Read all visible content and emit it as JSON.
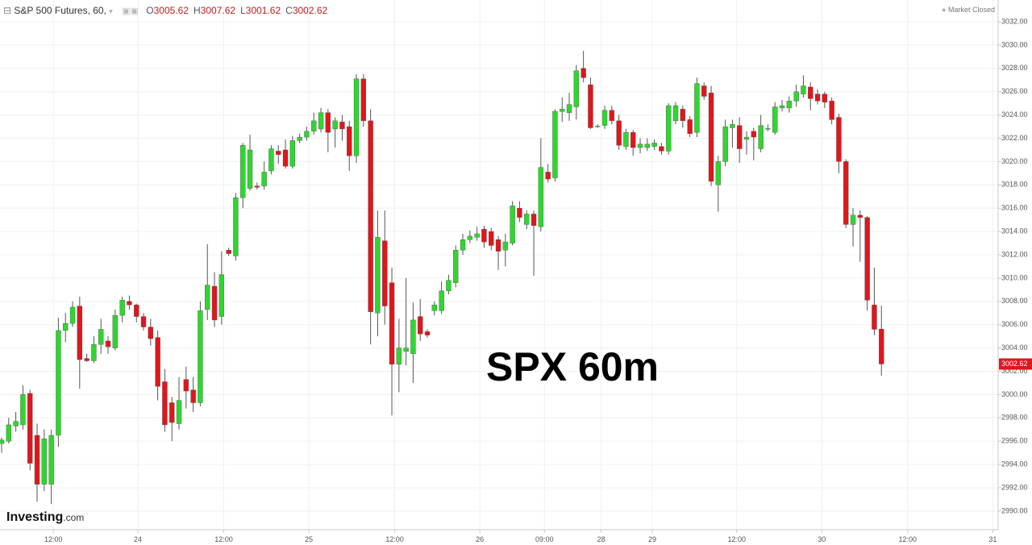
{
  "chart_data": {
    "type": "candlestick",
    "title": "S&P 500 Futures, 60,",
    "ohlc_keys": [
      "O",
      "H",
      "L",
      "C"
    ],
    "status": "Market Closed",
    "annotation": "SPX 60m",
    "logo": [
      "Investing",
      ".com"
    ],
    "up_color": "#2fd62f",
    "down_color": "#e0161c",
    "wick_color": "#555555",
    "grid": true,
    "xlim": [
      -0.23,
      140.45
    ],
    "xticks": [
      {
        "value": 7.3,
        "label": "12:00"
      },
      {
        "value": 19.2,
        "label": "24"
      },
      {
        "value": 31.3,
        "label": "12:00"
      },
      {
        "value": 43.3,
        "label": "25"
      },
      {
        "value": 55.4,
        "label": "12:00"
      },
      {
        "value": 67.4,
        "label": "26"
      },
      {
        "value": 76.5,
        "label": "09:00"
      },
      {
        "value": 84.5,
        "label": "28"
      },
      {
        "value": 91.7,
        "label": "29"
      },
      {
        "value": 103.6,
        "label": "12:00"
      },
      {
        "value": 115.6,
        "label": "30"
      },
      {
        "value": 127.7,
        "label": "12:00"
      },
      {
        "value": 139.7,
        "label": "31"
      }
    ],
    "ylim": [
      2988.4,
      3033.87
    ],
    "yticks": [
      {
        "value": 2990,
        "label": "2990.00"
      },
      {
        "value": 2992,
        "label": "2992.00"
      },
      {
        "value": 2994,
        "label": "2994.00"
      },
      {
        "value": 2996,
        "label": "2996.00"
      },
      {
        "value": 2998,
        "label": "2998.00"
      },
      {
        "value": 3000,
        "label": "3000.00"
      },
      {
        "value": 3002,
        "label": "3002.00"
      },
      {
        "value": 3004,
        "label": "3004.00"
      },
      {
        "value": 3006,
        "label": "3006.00"
      },
      {
        "value": 3008,
        "label": "3008.00"
      },
      {
        "value": 3010,
        "label": "3010.00"
      },
      {
        "value": 3012,
        "label": "3012.00"
      },
      {
        "value": 3014,
        "label": "3014.00"
      },
      {
        "value": 3016,
        "label": "3016.00"
      },
      {
        "value": 3018,
        "label": "3018.00"
      },
      {
        "value": 3020,
        "label": "3020.00"
      },
      {
        "value": 3022,
        "label": "3022.00"
      },
      {
        "value": 3024,
        "label": "3024.00"
      },
      {
        "value": 3026,
        "label": "3026.00"
      },
      {
        "value": 3028,
        "label": "3028.00"
      },
      {
        "value": 3030,
        "label": "3030.00"
      },
      {
        "value": 3032,
        "label": "3032.00"
      }
    ],
    "open": [
      2995.8,
      2996.0,
      2997.3,
      2997.4,
      3000.1,
      2996.5,
      2992.3,
      2992.3,
      2996.5,
      3005.5,
      3006.1,
      3007.6,
      3003.1,
      3002.9,
      3004.3,
      3004.6,
      3004.0,
      3006.8,
      3008.0,
      3007.7,
      3006.7,
      3005.8,
      3004.9,
      3001.1,
      2999.3,
      2997.5,
      3001.3,
      3000.4,
      2999.3,
      3007.3,
      3009.3,
      3006.7,
      3012.4,
      3011.9,
      3016.9,
      3017.7,
      3017.9,
      3017.9,
      3019.2,
      3020.9,
      3021.0,
      3019.6,
      3021.8,
      3022.1,
      3022.6,
      3022.8,
      3024.2,
      3022.8,
      3023.4,
      3023.0,
      3020.5,
      3027.1,
      3023.5,
      3007.0,
      3013.2,
      3009.6,
      3002.6,
      3003.7,
      3003.5,
      3006.7,
      3005.4,
      3007.2,
      3007.2,
      3008.9,
      3009.6,
      3012.4,
      3013.3,
      3013.5,
      3014.2,
      3014.0,
      3013.3,
      3012.4,
      3013.0,
      3016.0,
      3014.6,
      3015.5,
      3014.4,
      3019.1,
      3018.6,
      3024.3,
      3024.2,
      3024.7,
      3028.0,
      3026.6,
      3023.0,
      3023.1,
      3024.4,
      3023.5,
      3021.3,
      3022.5,
      3021.2,
      3021.2,
      3021.3,
      3021.3,
      3020.9,
      3023.5,
      3024.5,
      3023.6,
      3022.5,
      3026.5,
      3025.9,
      3018.0,
      3020.0,
      3022.9,
      3023.1,
      3021.9,
      3022.6,
      3021.1,
      3022.8,
      3022.5,
      3024.6,
      3024.6,
      3025.2,
      3025.8,
      3026.4,
      3025.8,
      3025.8,
      3025.2,
      3023.8,
      3020.0,
      3014.6,
      3015.4,
      3015.2,
      3007.7,
      3005.62
    ],
    "high": [
      2996.3,
      2998.0,
      2998.5,
      3000.8,
      3000.4,
      2997.5,
      2997.0,
      2997.0,
      3006.6,
      3007.0,
      3008.0,
      3008.4,
      3003.5,
      3005.0,
      3006.5,
      3005.0,
      3007.3,
      3008.4,
      3008.5,
      3007.8,
      3007.0,
      3006.5,
      3005.5,
      3002.2,
      2999.8,
      3001.5,
      3002.4,
      3001.5,
      3008.0,
      3012.9,
      3010.5,
      3012.3,
      3012.6,
      3017.3,
      3021.6,
      3022.3,
      3018.2,
      3020.0,
      3021.4,
      3021.4,
      3021.9,
      3022.2,
      3022.4,
      3023.0,
      3024.2,
      3024.6,
      3024.5,
      3023.8,
      3024.0,
      3023.5,
      3027.5,
      3027.5,
      3024.5,
      3015.8,
      3015.8,
      3010.9,
      3006.5,
      3010.0,
      3007.9,
      3008.2,
      3005.6,
      3008.0,
      3009.7,
      3010.3,
      3012.8,
      3013.8,
      3014.1,
      3014.4,
      3014.5,
      3014.3,
      3013.6,
      3013.8,
      3016.6,
      3016.6,
      3015.8,
      3015.8,
      3022.0,
      3019.8,
      3024.5,
      3025.5,
      3025.9,
      3028.3,
      3029.5,
      3027.2,
      3023.2,
      3024.8,
      3024.8,
      3024.0,
      3022.8,
      3022.7,
      3022.0,
      3022.0,
      3021.9,
      3021.6,
      3025.0,
      3025.1,
      3024.8,
      3023.9,
      3027.2,
      3026.8,
      3026.5,
      3020.5,
      3023.6,
      3023.6,
      3023.8,
      3022.6,
      3022.9,
      3024.0,
      3023.2,
      3025.1,
      3025.3,
      3025.6,
      3026.6,
      3027.4,
      3026.8,
      3026.2,
      3026.0,
      3025.5,
      3024.1,
      3020.2,
      3016.0,
      3015.8,
      3015.3,
      3010.9,
      3007.62
    ],
    "low": [
      2995.0,
      2995.8,
      2996.8,
      2997.0,
      2993.5,
      2990.8,
      2991.7,
      2990.6,
      2995.5,
      3004.5,
      3005.8,
      3000.5,
      3002.8,
      3002.7,
      3003.5,
      3003.5,
      3003.8,
      3006.2,
      3007.3,
      3006.2,
      3005.5,
      3004.2,
      2999.5,
      2996.8,
      2996.0,
      2997.0,
      2998.8,
      2998.5,
      2999.0,
      3006.4,
      3005.8,
      3006.0,
      3011.9,
      3011.5,
      3016.0,
      3017.5,
      3017.6,
      3017.6,
      3018.9,
      3019.8,
      3019.4,
      3019.4,
      3021.6,
      3021.8,
      3022.3,
      3022.5,
      3020.8,
      3021.2,
      3021.8,
      3019.2,
      3019.9,
      3023.0,
      3004.3,
      3005.0,
      3006.0,
      2998.2,
      3000.2,
      3002.5,
      3001.0,
      3004.6,
      3004.9,
      3006.8,
      3006.9,
      3008.6,
      3009.2,
      3012.0,
      3013.0,
      3013.2,
      3012.6,
      3012.4,
      3010.7,
      3011.0,
      3012.8,
      3014.8,
      3014.2,
      3010.2,
      3014.0,
      3018.2,
      3018.3,
      3023.4,
      3023.5,
      3023.6,
      3026.8,
      3022.8,
      3022.9,
      3022.8,
      3023.2,
      3021.0,
      3021.0,
      3020.5,
      3020.7,
      3020.9,
      3021.0,
      3020.6,
      3020.6,
      3023.2,
      3022.9,
      3022.1,
      3022.1,
      3025.3,
      3017.9,
      3015.7,
      3019.6,
      3021.2,
      3019.9,
      3020.6,
      3020.1,
      3020.8,
      3022.6,
      3022.3,
      3024.3,
      3024.2,
      3024.7,
      3025.5,
      3024.4,
      3024.9,
      3024.6,
      3023.2,
      3019.0,
      3014.3,
      3012.7,
      3011.4,
      3007.2,
      3005.1,
      3001.62
    ],
    "close": [
      2996.1,
      2997.4,
      2997.7,
      3000.0,
      2994.1,
      2992.3,
      2996.2,
      2996.5,
      3005.5,
      3006.1,
      3007.5,
      3003.0,
      3002.9,
      3004.3,
      3005.6,
      3004.1,
      3006.8,
      3008.1,
      3007.7,
      3006.7,
      3005.8,
      3004.8,
      3000.7,
      2997.4,
      2997.6,
      2999.5,
      3000.3,
      2999.3,
      3007.2,
      3009.4,
      3006.4,
      3010.3,
      3012.1,
      3016.9,
      3021.4,
      3021.0,
      3017.8,
      3019.1,
      3021.1,
      3020.6,
      3019.6,
      3021.8,
      3022.1,
      3022.6,
      3023.5,
      3024.2,
      3022.5,
      3023.5,
      3022.8,
      3020.5,
      3027.1,
      3023.5,
      3007.1,
      3013.5,
      3007.6,
      3002.6,
      3004.0,
      3004.0,
      3006.4,
      3005.2,
      3005.1,
      3007.7,
      3008.9,
      3009.8,
      3012.4,
      3013.3,
      3013.6,
      3013.8,
      3013.1,
      3012.8,
      3012.3,
      3013.1,
      3016.2,
      3015.2,
      3015.5,
      3014.5,
      3019.5,
      3018.5,
      3024.3,
      3024.5,
      3024.9,
      3027.8,
      3027.2,
      3022.9,
      3023.05,
      3024.4,
      3023.5,
      3021.4,
      3022.5,
      3021.2,
      3021.5,
      3021.5,
      3021.6,
      3020.9,
      3024.8,
      3024.8,
      3023.5,
      3022.4,
      3026.7,
      3025.6,
      3018.3,
      3020.0,
      3023.0,
      3023.2,
      3021.1,
      3022.1,
      3022.1,
      3023.1,
      3022.85,
      3024.7,
      3024.8,
      3025.2,
      3026.0,
      3026.5,
      3025.4,
      3025.2,
      3025.1,
      3023.6,
      3020.0,
      3014.6,
      3015.4,
      3015.2,
      3008.1,
      3005.6,
      3002.62
    ]
  }
}
